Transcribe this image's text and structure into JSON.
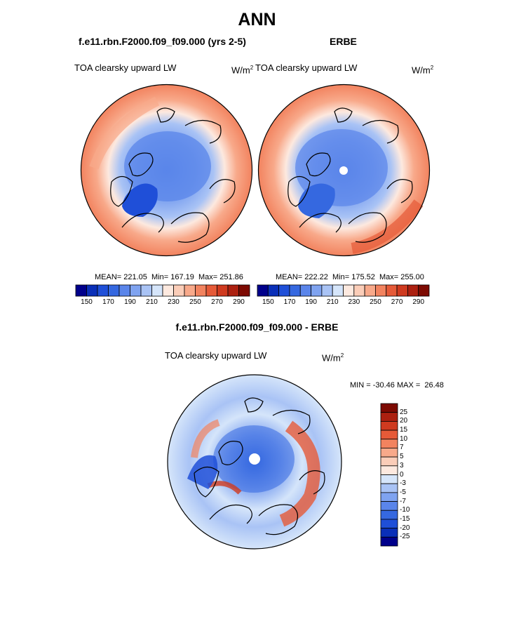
{
  "figure": {
    "title": "ANN",
    "bottom_title": "f.e11.rbn.F2000.f09_f09.000 - ERBE"
  },
  "panels": {
    "model": {
      "title": "f.e11.rbn.F2000.f09_f09.000 (yrs 2-5)",
      "variable": "TOA clearsky upward LW",
      "unit": "W/m",
      "unit_exp": "2",
      "stats": "MEAN= 221.05  Min= 167.19  Max= 251.86"
    },
    "obs": {
      "title": "ERBE",
      "variable": "TOA clearsky upward LW",
      "unit": "W/m",
      "unit_exp": "2",
      "stats": "MEAN= 222.22  Min= 175.52  Max= 255.00"
    },
    "diff": {
      "variable": "TOA clearsky upward LW",
      "unit": "W/m",
      "unit_exp": "2",
      "stats": "MIN = -30.46 MAX =  26.48"
    }
  },
  "colorbar_abs": {
    "colors": [
      "#00008b",
      "#0a2fb8",
      "#1f4fd8",
      "#3568e0",
      "#5a85ea",
      "#7fa3f0",
      "#a9c3f5",
      "#d5e5fa",
      "#fde9df",
      "#fbcdb8",
      "#f8a98a",
      "#f2835f",
      "#e65a38",
      "#cf3a1f",
      "#ac2010",
      "#7d0a02"
    ],
    "ticks": [
      "150",
      "170",
      "190",
      "210",
      "230",
      "250",
      "270",
      "290"
    ]
  },
  "colorbar_diff": {
    "colors": [
      "#7d0a02",
      "#ac2010",
      "#cf3a1f",
      "#e65a38",
      "#f2835f",
      "#f8a98a",
      "#fbcdb8",
      "#fde9df",
      "#d5e5fa",
      "#a9c3f5",
      "#7fa3f0",
      "#5a85ea",
      "#3568e0",
      "#1f4fd8",
      "#0a2fb8",
      "#00008b"
    ],
    "labels": [
      "25",
      "20",
      "15",
      "10",
      "7",
      "5",
      "3",
      "0",
      "-3",
      "-5",
      "-7",
      "-10",
      "-15",
      "-20",
      "-25"
    ]
  }
}
